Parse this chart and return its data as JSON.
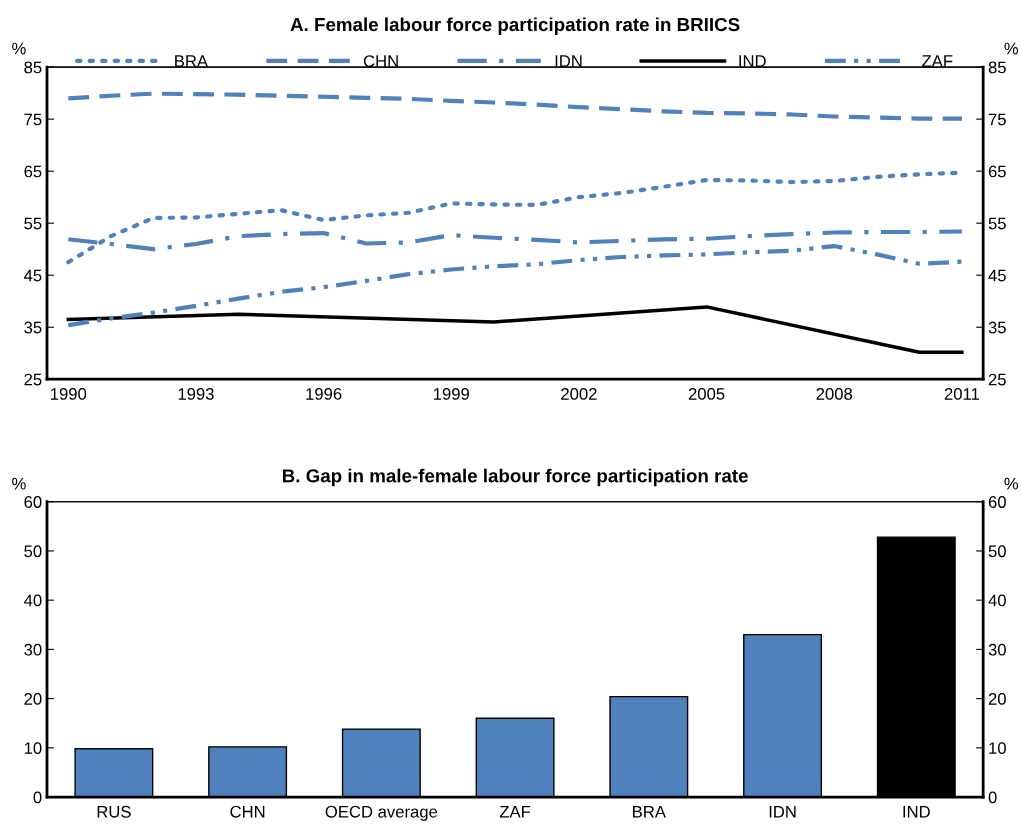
{
  "chart_data": [
    {
      "type": "line",
      "title": "A. Female labour force participation rate in BRIICS",
      "ylabel": "%",
      "y2label": "%",
      "categories": [
        "1990",
        null,
        null,
        "1993",
        null,
        null,
        "1996",
        null,
        null,
        "1999",
        null,
        null,
        "2002",
        null,
        null,
        "2005",
        null,
        null,
        "2008",
        null,
        null,
        "2011"
      ],
      "series": [
        {
          "name": "BRA",
          "color": "#4f81bd",
          "line_style": "dotted",
          "values": [
            47.5,
            52.5,
            56.0,
            56.1,
            56.8,
            57.5,
            55.6,
            56.5,
            57.0,
            58.8,
            58.6,
            58.5,
            60.0,
            60.8,
            62.0,
            63.3,
            63.2,
            62.9,
            63.1,
            63.9,
            64.4,
            64.7
          ]
        },
        {
          "name": "CHN",
          "color": "#4f81bd",
          "line_style": "dashed",
          "values": [
            79.0,
            79.5,
            79.9,
            79.8,
            79.7,
            79.5,
            79.3,
            79.1,
            78.9,
            78.5,
            78.2,
            77.8,
            77.3,
            76.9,
            76.5,
            76.2,
            76.1,
            75.9,
            75.5,
            75.3,
            75.1,
            75.1
          ]
        },
        {
          "name": "IDN",
          "color": "#4f81bd",
          "line_style": "dashdot",
          "values": [
            51.9,
            51.0,
            50.0,
            51.0,
            52.5,
            52.9,
            53.1,
            51.1,
            51.3,
            52.7,
            52.2,
            51.8,
            51.3,
            51.6,
            51.9,
            52.0,
            52.5,
            52.9,
            53.2,
            53.3,
            53.3,
            53.4
          ]
        },
        {
          "name": "IND",
          "color": "#000000",
          "line_style": "solid",
          "values": [
            36.5,
            null,
            null,
            null,
            37.5,
            null,
            null,
            null,
            null,
            null,
            36.0,
            null,
            null,
            null,
            null,
            38.9,
            null,
            null,
            null,
            null,
            30.2,
            30.2
          ]
        },
        {
          "name": "ZAF",
          "color": "#4f81bd",
          "line_style": "dashdotdot",
          "values": [
            35.4,
            36.7,
            37.8,
            39.1,
            40.5,
            41.8,
            42.7,
            43.9,
            45.2,
            46.1,
            46.7,
            47.1,
            47.9,
            48.5,
            48.8,
            49.0,
            49.4,
            49.7,
            50.6,
            49.0,
            47.2,
            47.6
          ]
        }
      ],
      "ylim": [
        25,
        85
      ],
      "yticks": [
        25,
        35,
        45,
        55,
        65,
        75,
        85
      ],
      "y2lim": [
        25,
        85
      ],
      "y2ticks": [
        25,
        35,
        45,
        55,
        65,
        75,
        85
      ],
      "legend": "top",
      "grid": false
    },
    {
      "type": "bar",
      "title": "B. Gap in male-female labour force participation rate",
      "ylabel": "%",
      "y2label": "%",
      "categories": [
        "RUS",
        "CHN",
        "OECD average",
        "ZAF",
        "BRA",
        "IDN",
        "IND"
      ],
      "values": [
        9.8,
        10.2,
        13.8,
        16.0,
        20.4,
        33.0,
        52.8
      ],
      "colors": [
        "#4f81bd",
        "#4f81bd",
        "#4f81bd",
        "#4f81bd",
        "#4f81bd",
        "#4f81bd",
        "#000000"
      ],
      "ylim": [
        0,
        60
      ],
      "yticks": [
        0,
        10,
        20,
        30,
        40,
        50,
        60
      ],
      "y2lim": [
        0,
        60
      ],
      "y2ticks": [
        0,
        10,
        20,
        30,
        40,
        50,
        60
      ],
      "legend": false,
      "grid": false
    }
  ]
}
